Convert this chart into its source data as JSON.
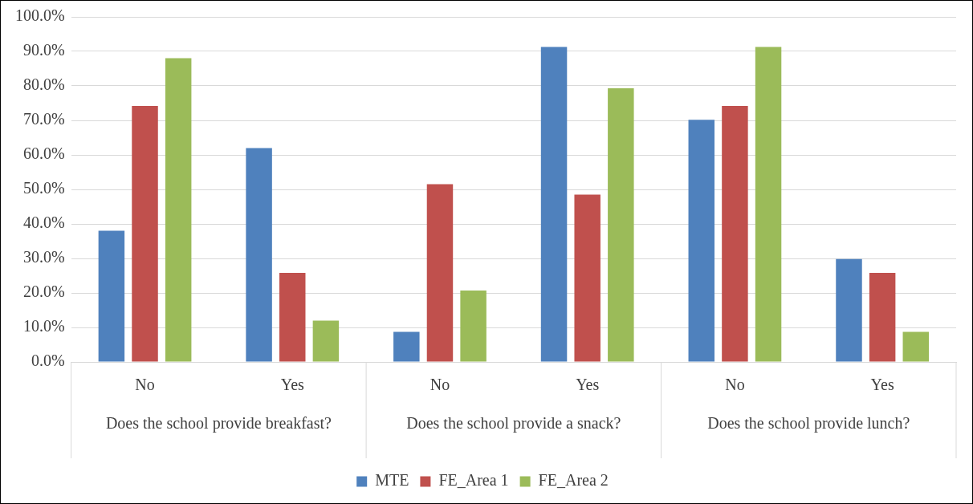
{
  "chart_data": {
    "type": "bar",
    "categories": [
      "No",
      "Yes",
      "No",
      "Yes",
      "No",
      "Yes"
    ],
    "series": [
      {
        "name": "MTE",
        "color": "#4f81bd",
        "values": [
          38.0,
          62.0,
          8.7,
          91.3,
          70.2,
          29.8
        ]
      },
      {
        "name": "FE_Area 1",
        "color": "#c0504d",
        "values": [
          74.2,
          25.8,
          51.5,
          48.5,
          74.2,
          25.8
        ]
      },
      {
        "name": "FE_Area 2",
        "color": "#9bbb59",
        "values": [
          88.0,
          12.0,
          20.7,
          79.3,
          91.3,
          8.7
        ]
      }
    ],
    "ylim": [
      0,
      100
    ],
    "yticks": [
      {
        "value": 0,
        "label": "0.0%"
      },
      {
        "value": 10,
        "label": "10.0%"
      },
      {
        "value": 20,
        "label": "20.0%"
      },
      {
        "value": 30,
        "label": "30.0%"
      },
      {
        "value": 40,
        "label": "40.0%"
      },
      {
        "value": 50,
        "label": "50.0%"
      },
      {
        "value": 60,
        "label": "60.0%"
      },
      {
        "value": 70,
        "label": "70.0%"
      },
      {
        "value": 80,
        "label": "80.0%"
      },
      {
        "value": 90,
        "label": "90.0%"
      },
      {
        "value": 100,
        "label": "100.0%"
      }
    ],
    "annotations": [
      "Does the school provide breakfast?",
      "Does the school provide a snack?",
      "Does the school provide lunch?"
    ],
    "grid": "y",
    "legend": "bottom"
  }
}
